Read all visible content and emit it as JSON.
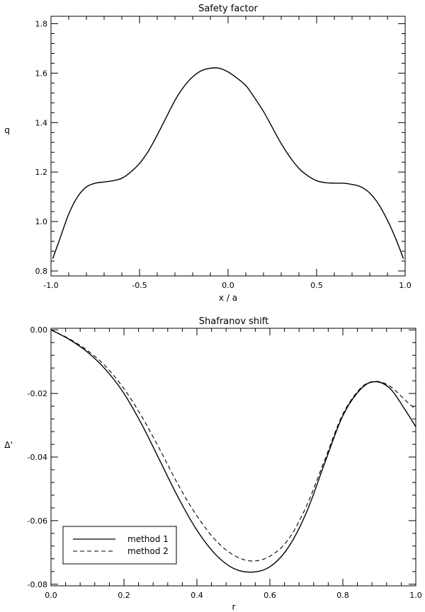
{
  "chart_data": [
    {
      "type": "line",
      "title": "Safety factor",
      "xlabel": "x / a",
      "ylabel": "q",
      "xlim": [
        -1.0,
        1.0
      ],
      "ylim": [
        0.78,
        1.83
      ],
      "xticks": [
        "-1.0",
        "-0.5",
        "0.0",
        "0.5",
        "1.0"
      ],
      "yticks": [
        "0.8",
        "1.0",
        "1.2",
        "1.4",
        "1.6",
        "1.8"
      ],
      "grid": false,
      "series": [
        {
          "line_style": "solid",
          "x": [
            -0.99,
            -0.95,
            -0.9,
            -0.85,
            -0.8,
            -0.75,
            -0.7,
            -0.65,
            -0.6,
            -0.55,
            -0.5,
            -0.45,
            -0.4,
            -0.35,
            -0.3,
            -0.25,
            -0.2,
            -0.15,
            -0.1,
            -0.05,
            0.0,
            0.05,
            0.1,
            0.15,
            0.2,
            0.25,
            0.3,
            0.35,
            0.4,
            0.45,
            0.5,
            0.55,
            0.6,
            0.65,
            0.7,
            0.75,
            0.8,
            0.85,
            0.9,
            0.95,
            0.99
          ],
          "y": [
            0.85,
            0.93,
            1.03,
            1.1,
            1.14,
            1.155,
            1.16,
            1.165,
            1.175,
            1.2,
            1.235,
            1.285,
            1.35,
            1.42,
            1.49,
            1.545,
            1.585,
            1.61,
            1.62,
            1.62,
            1.605,
            1.58,
            1.55,
            1.5,
            1.445,
            1.38,
            1.315,
            1.26,
            1.215,
            1.185,
            1.165,
            1.157,
            1.155,
            1.155,
            1.15,
            1.14,
            1.115,
            1.07,
            1.005,
            0.925,
            0.85
          ]
        }
      ]
    },
    {
      "type": "line",
      "title": "Shafranov shift",
      "xlabel": "r",
      "ylabel": "Δ'",
      "xlim": [
        0.0,
        1.0
      ],
      "ylim": [
        -0.0805,
        0.0005
      ],
      "xticks": [
        "0.0",
        "0.2",
        "0.4",
        "0.6",
        "0.8",
        "1.0"
      ],
      "yticks": [
        "0.00",
        "-0.02",
        "-0.04",
        "-0.06",
        "-0.08"
      ],
      "grid": false,
      "legend": {
        "placement": "bottom-left"
      },
      "series": [
        {
          "name": "method 1",
          "line_style": "solid",
          "x": [
            0.0,
            0.05,
            0.1,
            0.15,
            0.2,
            0.25,
            0.3,
            0.35,
            0.4,
            0.45,
            0.5,
            0.55,
            0.6,
            0.65,
            0.7,
            0.75,
            0.8,
            0.85,
            0.89,
            0.93,
            0.97,
            1.0
          ],
          "y": [
            0.0,
            -0.003,
            -0.007,
            -0.0125,
            -0.02,
            -0.03,
            -0.0415,
            -0.053,
            -0.063,
            -0.0705,
            -0.075,
            -0.0762,
            -0.0745,
            -0.0685,
            -0.0575,
            -0.042,
            -0.027,
            -0.0185,
            -0.0163,
            -0.0185,
            -0.025,
            -0.0305
          ]
        },
        {
          "name": "method 2",
          "line_style": "dashed",
          "x": [
            0.0,
            0.05,
            0.1,
            0.15,
            0.2,
            0.25,
            0.3,
            0.35,
            0.4,
            0.45,
            0.5,
            0.55,
            0.6,
            0.65,
            0.7,
            0.75,
            0.8,
            0.85,
            0.89,
            0.93,
            0.97,
            1.0
          ],
          "y": [
            0.0,
            -0.0028,
            -0.0065,
            -0.0115,
            -0.0185,
            -0.0275,
            -0.038,
            -0.049,
            -0.0585,
            -0.066,
            -0.0708,
            -0.0727,
            -0.0712,
            -0.066,
            -0.0555,
            -0.041,
            -0.0265,
            -0.0182,
            -0.0162,
            -0.0178,
            -0.022,
            -0.025
          ]
        }
      ]
    }
  ]
}
